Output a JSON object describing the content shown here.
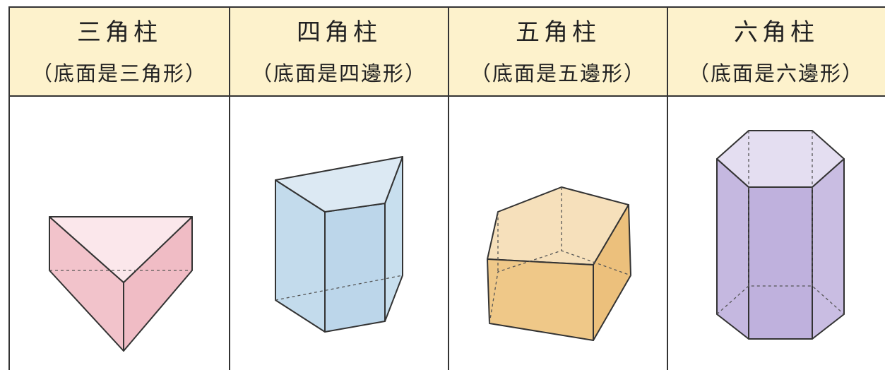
{
  "columns": [
    {
      "name": "三角柱",
      "base": "（底面是三角形）"
    },
    {
      "name": "四角柱",
      "base": "（底面是四邊形）"
    },
    {
      "name": "五角柱",
      "base": "（底面是五邊形）"
    },
    {
      "name": "六角柱",
      "base": "（底面是六邊形）"
    }
  ]
}
